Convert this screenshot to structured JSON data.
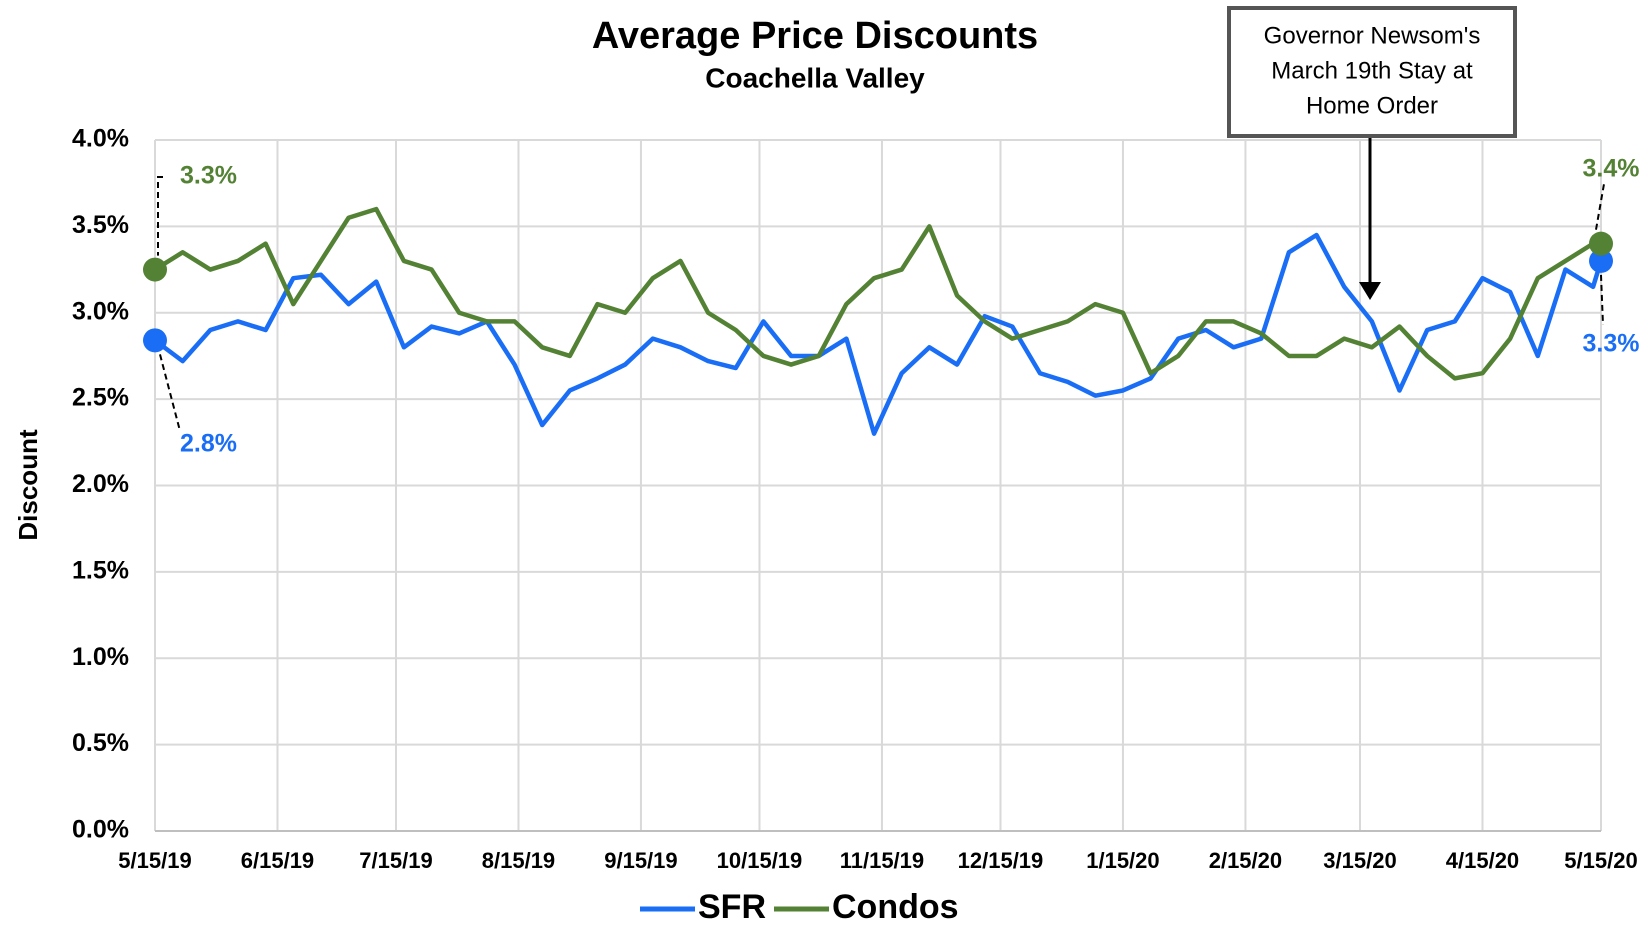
{
  "chart_data": {
    "type": "line",
    "title": "Average Price Discounts",
    "subtitle": "Coachella Valley",
    "y_label": "Discount",
    "x": [
      "5/15/19",
      "5/22/19",
      "5/29/19",
      "6/5/19",
      "6/12/19",
      "6/19/19",
      "6/26/19",
      "7/3/19",
      "7/10/19",
      "7/17/19",
      "7/24/19",
      "7/31/19",
      "8/7/19",
      "8/14/19",
      "8/21/19",
      "8/28/19",
      "9/4/19",
      "9/11/19",
      "9/18/19",
      "9/25/19",
      "10/2/19",
      "10/9/19",
      "10/16/19",
      "10/23/19",
      "10/30/19",
      "11/6/19",
      "11/13/19",
      "11/20/19",
      "11/27/19",
      "12/4/19",
      "12/11/19",
      "12/18/19",
      "12/25/19",
      "1/1/20",
      "1/8/20",
      "1/15/20",
      "1/22/20",
      "1/29/20",
      "2/5/20",
      "2/12/20",
      "2/19/20",
      "2/26/20",
      "3/4/20",
      "3/11/20",
      "3/18/20",
      "3/25/20",
      "4/1/20",
      "4/8/20",
      "4/15/20",
      "4/22/20",
      "4/29/20",
      "5/6/20",
      "5/13/20",
      "5/15/20"
    ],
    "series": [
      {
        "name": "SFR",
        "color": "#1a6ef5",
        "values": [
          2.84,
          2.72,
          2.9,
          2.95,
          2.9,
          3.2,
          3.22,
          3.05,
          3.18,
          2.8,
          2.92,
          2.88,
          2.95,
          2.7,
          2.35,
          2.55,
          2.62,
          2.7,
          2.85,
          2.8,
          2.72,
          2.68,
          2.95,
          2.75,
          2.75,
          2.85,
          2.3,
          2.65,
          2.8,
          2.7,
          2.98,
          2.92,
          2.65,
          2.6,
          2.52,
          2.55,
          2.62,
          2.85,
          2.9,
          2.8,
          2.85,
          3.35,
          3.45,
          3.15,
          2.95,
          2.55,
          2.9,
          2.95,
          3.2,
          3.12,
          2.75,
          3.25,
          3.15,
          3.3
        ],
        "value_labels": [
          "2.8%",
          null,
          null,
          null,
          null,
          null,
          null,
          null,
          null,
          null,
          null,
          null,
          null,
          null,
          null,
          null,
          null,
          null,
          null,
          null,
          null,
          null,
          null,
          null,
          null,
          null,
          null,
          null,
          null,
          null,
          null,
          null,
          null,
          null,
          null,
          null,
          null,
          null,
          null,
          null,
          null,
          null,
          null,
          null,
          null,
          null,
          null,
          null,
          null,
          null,
          null,
          null,
          null,
          "3.3%"
        ]
      },
      {
        "name": "Condos",
        "color": "#548235",
        "values": [
          3.25,
          3.35,
          3.25,
          3.3,
          3.4,
          3.05,
          3.3,
          3.55,
          3.6,
          3.3,
          3.25,
          3.0,
          2.95,
          2.95,
          2.8,
          2.75,
          3.05,
          3.0,
          3.2,
          3.3,
          3.0,
          2.9,
          2.75,
          2.7,
          2.75,
          3.05,
          3.2,
          3.25,
          3.5,
          3.1,
          2.95,
          2.85,
          2.9,
          2.95,
          3.05,
          3.0,
          2.65,
          2.75,
          2.95,
          2.95,
          2.88,
          2.75,
          2.75,
          2.85,
          2.8,
          2.92,
          2.75,
          2.62,
          2.65,
          2.85,
          3.2,
          3.3,
          3.4,
          3.4
        ],
        "value_labels": [
          "3.3%",
          null,
          null,
          null,
          null,
          null,
          null,
          null,
          null,
          null,
          null,
          null,
          null,
          null,
          null,
          null,
          null,
          null,
          null,
          null,
          null,
          null,
          null,
          null,
          null,
          null,
          null,
          null,
          null,
          null,
          null,
          null,
          null,
          null,
          null,
          null,
          null,
          null,
          null,
          null,
          null,
          null,
          null,
          null,
          null,
          null,
          null,
          null,
          null,
          null,
          null,
          null,
          null,
          "3.4%"
        ]
      }
    ],
    "xticks": [
      "5/15/19",
      "6/15/19",
      "7/15/19",
      "8/15/19",
      "9/15/19",
      "10/15/19",
      "11/15/19",
      "12/15/19",
      "1/15/20",
      "2/15/20",
      "3/15/20",
      "4/15/20",
      "5/15/20"
    ],
    "ylim": [
      0,
      4
    ],
    "yticks": [
      {
        "value": 0,
        "label": "0.0%"
      },
      {
        "value": 0.5,
        "label": "0.5%"
      },
      {
        "value": 1,
        "label": "1.0%"
      },
      {
        "value": 1.5,
        "label": "1.5%"
      },
      {
        "value": 2,
        "label": "2.0%"
      },
      {
        "value": 2.5,
        "label": "2.5%"
      },
      {
        "value": 3,
        "label": "3.0%"
      },
      {
        "value": 3.5,
        "label": "3.5%"
      },
      {
        "value": 4,
        "label": "4.0%"
      }
    ],
    "grid": true,
    "legend": "bottom",
    "annotation": [
      "Governor Newsom's",
      "March 19th Stay at",
      "Home Order"
    ]
  }
}
